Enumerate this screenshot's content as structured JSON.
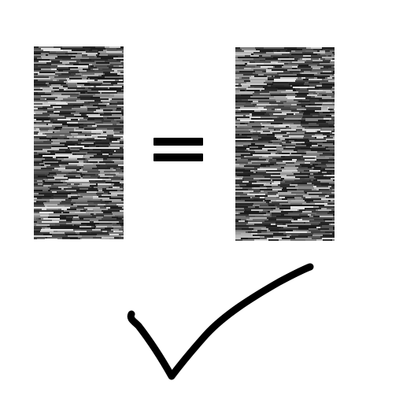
{
  "colors": {
    "background": "#ffffff",
    "panel_dark": "#1a1a1a",
    "panel_light": "#e6e6e6",
    "equals": "#000000",
    "checkmark": "#000000"
  },
  "icons": {
    "left_panel": "noise-texture-panel",
    "right_panel": "noise-texture-panel",
    "operator": "equals-icon",
    "verdict": "checkmark-icon"
  }
}
